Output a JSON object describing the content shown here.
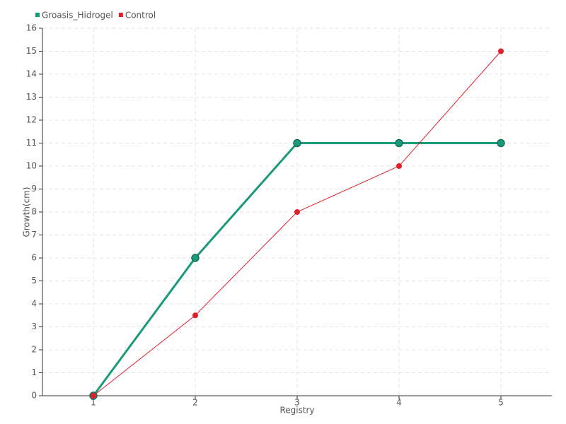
{
  "chart_data": {
    "type": "line",
    "x": [
      1,
      2,
      3,
      4,
      5
    ],
    "series": [
      {
        "name": "Groasis_Hidrogel",
        "color": "#1a9a7a",
        "values": [
          0,
          6,
          11,
          11,
          11
        ]
      },
      {
        "name": "Control",
        "color": "#e0202a",
        "values": [
          0,
          3.5,
          8,
          10,
          15
        ]
      }
    ],
    "xlabel": "Registry",
    "ylabel": "Growth(cm)",
    "xlim": [
      0.5,
      5.5
    ],
    "xticks": [
      1,
      2,
      3,
      4,
      5
    ],
    "ylim": [
      0,
      16
    ],
    "yticks": [
      0,
      1,
      2,
      3,
      4,
      5,
      6,
      7,
      8,
      9,
      10,
      11,
      12,
      13,
      14,
      15,
      16
    ],
    "grid": true,
    "legend": "top-left"
  }
}
